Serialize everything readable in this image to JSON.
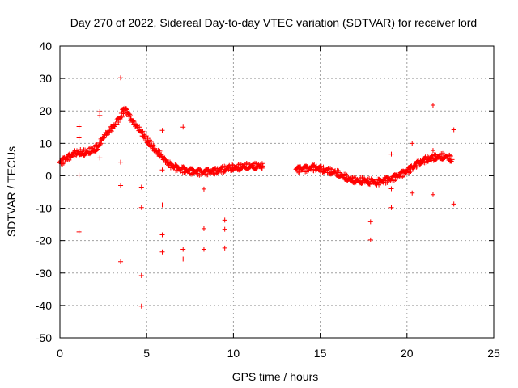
{
  "chart_data": {
    "type": "scatter",
    "title": "Day 270 of 2022, Sidereal Day-to-day VTEC variation (SDTVAR) for receiver lord",
    "xlabel": "GPS time / hours",
    "ylabel": "SDTVAR / TECUs",
    "xlim": [
      0,
      25
    ],
    "ylim": [
      -50,
      40
    ],
    "xticks": [
      0,
      5,
      10,
      15,
      20,
      25
    ],
    "yticks": [
      -50,
      -40,
      -30,
      -20,
      -10,
      0,
      10,
      20,
      30,
      40
    ],
    "grid": true,
    "marker": "+",
    "color": "#ff0000",
    "series": [
      {
        "name": "main-trend",
        "x": [
          0.0,
          0.3,
          0.6,
          0.9,
          1.1,
          1.3,
          1.6,
          1.9,
          2.2,
          2.4,
          2.6,
          2.9,
          3.2,
          3.5,
          3.7,
          3.9,
          4.1,
          4.3,
          4.5,
          4.7,
          4.9,
          5.1,
          5.3,
          5.5,
          5.8,
          6.0,
          6.3,
          6.6,
          7.0,
          7.4,
          7.8,
          8.2,
          8.6,
          9.0,
          9.4,
          9.8,
          10.2,
          10.6,
          11.0,
          11.4,
          11.7
        ],
        "y": [
          4.0,
          5.0,
          6.0,
          7.0,
          7.5,
          7.0,
          7.5,
          8.0,
          9.0,
          11.0,
          12.5,
          14.0,
          16.0,
          18.0,
          20.5,
          19.5,
          17.5,
          16.0,
          15.0,
          13.5,
          12.0,
          10.5,
          9.5,
          8.0,
          6.5,
          5.0,
          3.5,
          2.5,
          2.0,
          1.5,
          1.2,
          1.0,
          1.2,
          1.5,
          2.0,
          2.5,
          2.5,
          3.0,
          3.0,
          3.0,
          3.0
        ]
      },
      {
        "name": "afternoon-trend",
        "x": [
          13.6,
          13.9,
          14.3,
          14.7,
          15.1,
          15.5,
          15.9,
          16.3,
          16.7,
          17.1,
          17.5,
          17.9,
          18.3,
          18.7,
          19.1,
          19.5,
          19.9,
          20.3,
          20.7,
          21.1,
          21.5,
          21.9,
          22.3,
          22.6
        ],
        "y": [
          2.0,
          2.0,
          2.2,
          2.5,
          2.0,
          1.5,
          1.0,
          0.0,
          -1.0,
          -1.5,
          -1.5,
          -1.8,
          -2.0,
          -1.5,
          -1.0,
          0.0,
          1.0,
          2.5,
          4.0,
          5.0,
          5.5,
          6.0,
          6.0,
          5.0
        ]
      },
      {
        "name": "outliers",
        "x": [
          1.1,
          1.1,
          1.1,
          1.1,
          2.3,
          2.3,
          2.3,
          3.5,
          3.5,
          3.5,
          3.5,
          3.6,
          4.7,
          4.7,
          4.7,
          4.7,
          5.9,
          5.9,
          5.9,
          5.9,
          5.9,
          7.1,
          7.1,
          7.1,
          8.3,
          8.3,
          8.3,
          9.5,
          9.5,
          9.5,
          17.9,
          17.9,
          19.1,
          19.1,
          19.1,
          20.3,
          20.3,
          21.5,
          21.5,
          21.5,
          22.7,
          22.7
        ],
        "y": [
          15.2,
          11.7,
          0.2,
          -17.3,
          19.8,
          18.6,
          5.5,
          30.2,
          4.2,
          -3.0,
          -26.5,
          20.5,
          -3.5,
          -9.8,
          -30.8,
          -40.2,
          14.0,
          1.8,
          -9.0,
          -18.2,
          -23.5,
          15.0,
          -22.7,
          -25.7,
          -4.1,
          -16.3,
          -22.7,
          -13.7,
          -16.5,
          -22.3,
          -14.2,
          -19.8,
          6.7,
          -4.0,
          -9.8,
          10.0,
          -5.3,
          21.8,
          7.8,
          -5.8,
          14.2,
          -8.7
        ]
      }
    ]
  }
}
